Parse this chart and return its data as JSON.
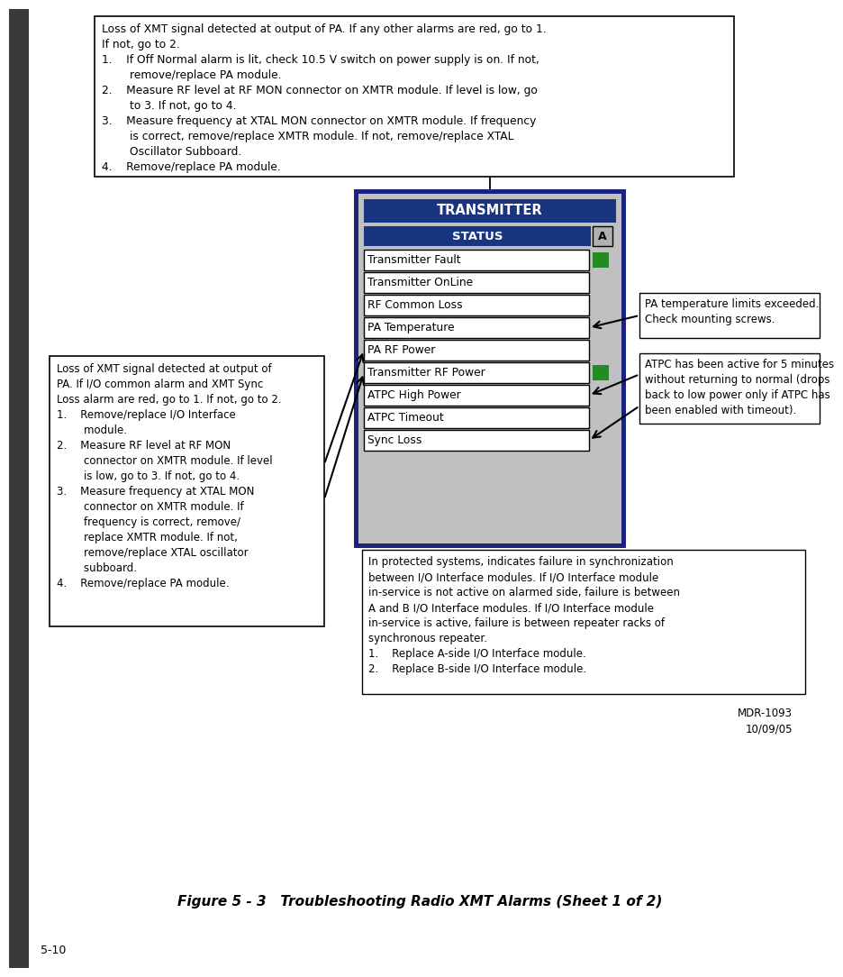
{
  "title": "Figure 5 - 3   Troubleshooting Radio XMT Alarms (Sheet 1 of 2)",
  "page_num": "5-10",
  "doc_ref": "MDR-1093\n10/09/05",
  "bg_color": "#ffffff",
  "panel_bg": "#c0c0c0",
  "panel_border": "#1a237e",
  "header_bg": "#1a3580",
  "status_items": [
    "Transmitter Fault",
    "Transmitter OnLine",
    "RF Common Loss",
    "PA Temperature",
    "PA RF Power",
    "Transmitter RF Power",
    "ATPC High Power",
    "ATPC Timeout",
    "Sync Loss"
  ],
  "green_indicators": [
    0,
    5
  ],
  "top_box_text": "Loss of XMT signal detected at output of PA. If any other alarms are red, go to 1.\nIf not, go to 2.\n1.    If Off Normal alarm is lit, check 10.5 V switch on power supply is on. If not,\n        remove/replace PA module.\n2.    Measure RF level at RF MON connector on XMTR module. If level is low, go\n        to 3. If not, go to 4.\n3.    Measure frequency at XTAL MON connector on XMTR module. If frequency\n        is correct, remove/replace XMTR module. If not, remove/replace XTAL\n        Oscillator Subboard.\n4.    Remove/replace PA module.",
  "left_box_text": "Loss of XMT signal detected at output of\nPA. If I/O common alarm and XMT Sync\nLoss alarm are red, go to 1. If not, go to 2.\n1.    Remove/replace I/O Interface\n        module.\n2.    Measure RF level at RF MON\n        connector on XMTR module. If level\n        is low, go to 3. If not, go to 4.\n3.    Measure frequency at XTAL MON\n        connector on XMTR module. If\n        frequency is correct, remove/\n        replace XMTR module. If not,\n        remove/replace XTAL oscillator\n        subboard.\n4.    Remove/replace PA module.",
  "right_top_text": "PA temperature limits exceeded.\nCheck mounting screws.",
  "right_bot_text": "ATPC has been active for 5 minutes\nwithout returning to normal (drops\nback to low power only if ATPC has\nbeen enabled with timeout).",
  "bottom_box_text": "In protected systems, indicates failure in synchronization\nbetween I/O Interface modules. If I/O Interface module\nin-service is not active on alarmed side, failure is between\nA and B I/O Interface modules. If I/O Interface module\nin-service is active, failure is between repeater racks of\nsynchronous repeater.\n1.    Replace A-side I/O Interface module.\n2.    Replace B-side I/O Interface module."
}
